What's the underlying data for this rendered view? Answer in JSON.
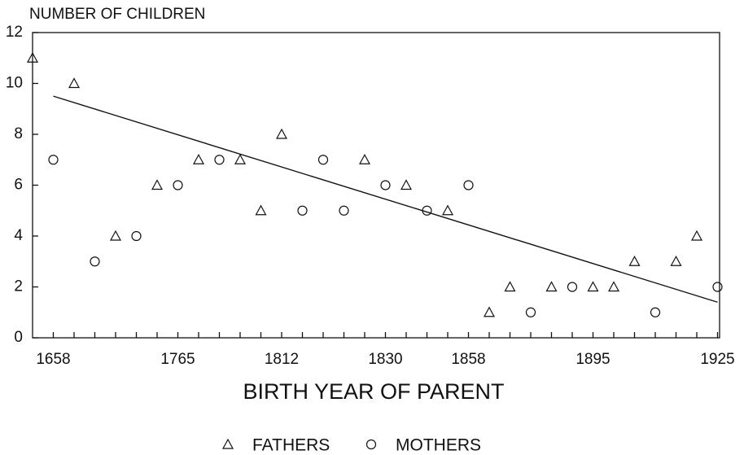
{
  "chart_data": {
    "type": "scatter",
    "y_label": "NUMBER OF CHILDREN",
    "x_label": "BIRTH YEAR OF PARENT",
    "categories": [
      null,
      "1658",
      null,
      null,
      null,
      null,
      null,
      "1765",
      null,
      null,
      null,
      null,
      "1812",
      null,
      null,
      null,
      null,
      "1830",
      null,
      null,
      null,
      "1858",
      null,
      null,
      null,
      null,
      null,
      "1895",
      null,
      null,
      null,
      null,
      null,
      "1925"
    ],
    "series": [
      {
        "name": "FATHERS",
        "marker": "triangle",
        "color": "#111111",
        "values": [
          11,
          null,
          10,
          null,
          4,
          null,
          6,
          null,
          7,
          null,
          7,
          5,
          8,
          null,
          null,
          null,
          7,
          null,
          6,
          null,
          5,
          null,
          1,
          2,
          null,
          2,
          null,
          2,
          2,
          3,
          null,
          3,
          4,
          null
        ]
      },
      {
        "name": "MOTHERS",
        "marker": "circle",
        "color": "#111111",
        "values": [
          null,
          7,
          null,
          3,
          null,
          4,
          null,
          6,
          null,
          7,
          null,
          null,
          null,
          5,
          7,
          5,
          null,
          6,
          null,
          5,
          null,
          6,
          null,
          null,
          1,
          null,
          2,
          null,
          null,
          null,
          1,
          null,
          null,
          2
        ]
      }
    ],
    "trend": {
      "values": [
        9.5,
        1.4
      ],
      "color": "#111111"
    },
    "ylim": [
      0,
      12
    ],
    "yticks": [
      0,
      2,
      4,
      6,
      8,
      10,
      12
    ]
  }
}
